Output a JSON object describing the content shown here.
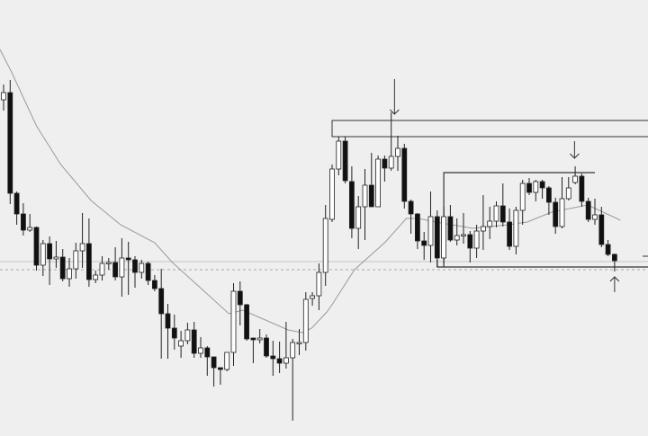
{
  "chart_data": {
    "type": "candlestick",
    "title": "",
    "xlabel": "",
    "ylabel": "",
    "grid": false,
    "legend": "none",
    "colors": {
      "background": "#efefef",
      "bull_body": "#ffffff",
      "bear_body": "#111111",
      "wick": "#222222",
      "moving_average": "#9a9a9a",
      "level_line": "#c4c4c4",
      "annotation": "#333333"
    },
    "candle_fields": [
      "open",
      "high",
      "low",
      "close"
    ],
    "candles": [
      [
        389,
        406,
        377,
        397
      ],
      [
        397,
        411,
        273,
        285
      ],
      [
        285,
        287,
        250,
        262
      ],
      [
        262,
        274,
        238,
        244
      ],
      [
        244,
        262,
        242,
        247
      ],
      [
        247,
        248,
        199,
        205
      ],
      [
        205,
        233,
        193,
        229
      ],
      [
        229,
        237,
        183,
        212
      ],
      [
        212,
        232,
        202,
        214
      ],
      [
        214,
        223,
        187,
        190
      ],
      [
        190,
        213,
        181,
        201
      ],
      [
        201,
        230,
        190,
        221
      ],
      [
        221,
        263,
        202,
        229
      ],
      [
        229,
        257,
        181,
        189
      ],
      [
        189,
        199,
        185,
        194
      ],
      [
        194,
        215,
        188,
        207
      ],
      [
        207,
        213,
        200,
        208
      ],
      [
        208,
        225,
        188,
        192
      ],
      [
        192,
        235,
        170,
        213
      ],
      [
        213,
        231,
        172,
        211
      ],
      [
        211,
        215,
        180,
        197
      ],
      [
        197,
        211,
        190,
        207
      ],
      [
        207,
        209,
        183,
        188
      ],
      [
        188,
        194,
        176,
        179
      ],
      [
        179,
        201,
        101,
        151
      ],
      [
        151,
        162,
        101,
        135
      ],
      [
        135,
        150,
        111,
        124
      ],
      [
        115,
        132,
        102,
        121
      ],
      [
        121,
        141,
        117,
        133
      ],
      [
        133,
        142,
        102,
        107
      ],
      [
        107,
        125,
        102,
        113
      ],
      [
        113,
        115,
        82,
        103
      ],
      [
        103,
        103,
        70,
        91
      ],
      [
        91,
        91,
        72,
        89
      ],
      [
        89,
        108,
        87,
        108
      ],
      [
        108,
        185,
        93,
        176
      ],
      [
        176,
        187,
        138,
        161
      ],
      [
        161,
        162,
        121,
        123
      ],
      [
        124,
        124,
        96,
        122
      ],
      [
        122,
        134,
        118,
        124
      ],
      [
        124,
        128,
        102,
        104
      ],
      [
        104,
        121,
        82,
        101
      ],
      [
        101,
        120,
        85,
        96
      ],
      [
        96,
        142,
        90,
        102
      ],
      [
        102,
        123,
        32,
        119
      ],
      [
        118,
        134,
        105,
        119
      ],
      [
        119,
        175,
        110,
        167
      ],
      [
        168,
        175,
        160,
        171
      ],
      [
        171,
        207,
        155,
        197
      ],
      [
        197,
        272,
        182,
        257
      ],
      [
        256,
        317,
        253,
        312
      ],
      [
        312,
        348,
        305,
        343
      ],
      [
        343,
        348,
        296,
        299
      ],
      [
        298,
        315,
        235,
        246
      ],
      [
        246,
        282,
        223,
        270
      ],
      [
        270,
        312,
        233,
        294
      ],
      [
        294,
        330,
        270,
        270
      ],
      [
        270,
        327,
        270,
        323
      ],
      [
        323,
        327,
        298,
        313
      ],
      [
        313,
        375,
        310,
        326
      ],
      [
        326,
        349,
        310,
        335
      ],
      [
        335,
        340,
        268,
        276
      ],
      [
        276,
        278,
        240,
        262
      ],
      [
        262,
        263,
        223,
        232
      ],
      [
        232,
        242,
        211,
        227
      ],
      [
        227,
        287,
        208,
        259
      ],
      [
        259,
        266,
        203,
        213
      ],
      [
        213,
        270,
        207,
        259
      ],
      [
        259,
        272,
        231,
        233
      ],
      [
        233,
        257,
        227,
        238
      ],
      [
        238,
        263,
        229,
        239
      ],
      [
        239,
        243,
        208,
        224
      ],
      [
        224,
        250,
        213,
        243
      ],
      [
        243,
        283,
        222,
        248
      ],
      [
        248,
        270,
        234,
        254
      ],
      [
        254,
        276,
        247,
        271
      ],
      [
        271,
        296,
        248,
        253
      ],
      [
        253,
        268,
        222,
        226
      ],
      [
        226,
        270,
        217,
        266
      ],
      [
        266,
        300,
        250,
        296
      ],
      [
        296,
        302,
        283,
        286
      ],
      [
        286,
        300,
        276,
        298
      ],
      [
        298,
        300,
        279,
        291
      ],
      [
        291,
        293,
        261,
        275
      ],
      [
        275,
        280,
        240,
        248
      ],
      [
        248,
        303,
        246,
        279
      ],
      [
        279,
        303,
        277,
        291
      ],
      [
        297,
        315,
        295,
        304
      ],
      [
        304,
        307,
        270,
        276
      ],
      [
        276,
        280,
        253,
        256
      ],
      [
        256,
        279,
        250,
        261
      ],
      [
        261,
        270,
        225,
        228
      ],
      [
        228,
        233,
        215,
        217
      ],
      [
        217,
        218,
        198,
        210
      ]
    ],
    "moving_average": [
      [
        -0.55,
        445
      ],
      [
        1.2,
        420
      ],
      [
        5,
        360
      ],
      [
        8.7,
        317
      ],
      [
        13.3,
        277
      ],
      [
        17.8,
        250
      ],
      [
        23,
        230
      ],
      [
        25.7,
        208
      ],
      [
        34.3,
        151
      ],
      [
        36.4,
        155
      ],
      [
        38.6,
        148
      ],
      [
        43.3,
        133
      ],
      [
        45.5,
        130
      ],
      [
        46.9,
        135
      ],
      [
        49.2,
        153
      ],
      [
        49.9,
        160
      ],
      [
        53.4,
        200
      ],
      [
        58,
        230
      ],
      [
        61.3,
        257
      ],
      [
        63.1,
        257
      ],
      [
        65.8,
        253
      ],
      [
        71.4,
        246
      ],
      [
        76.9,
        250
      ],
      [
        79.7,
        253
      ],
      [
        83.4,
        264
      ],
      [
        88.9,
        272
      ],
      [
        93.9,
        255
      ]
    ],
    "levels": [
      {
        "price": 209,
        "style": "solid"
      },
      {
        "price": 200,
        "style": "dashed"
      }
    ],
    "annotations": {
      "resistance_box": {
        "from_index": 50,
        "to_index": "end",
        "price_top": 366,
        "price_bottom": 348
      },
      "range_bracket": {
        "left_index": 67,
        "right_index": 90,
        "top_price": 308,
        "bottom_left_index": 66,
        "bottom_price": 203
      },
      "arrows": [
        {
          "direction": "down",
          "index": 59.5,
          "from_price": 412,
          "to_price": 373
        },
        {
          "direction": "down",
          "index": 86.9,
          "from_price": 343,
          "to_price": 324
        },
        {
          "direction": "up",
          "index": 93,
          "from_price": 175,
          "to_price": 192
        }
      ],
      "right_tick": {
        "price": 215
      }
    }
  }
}
